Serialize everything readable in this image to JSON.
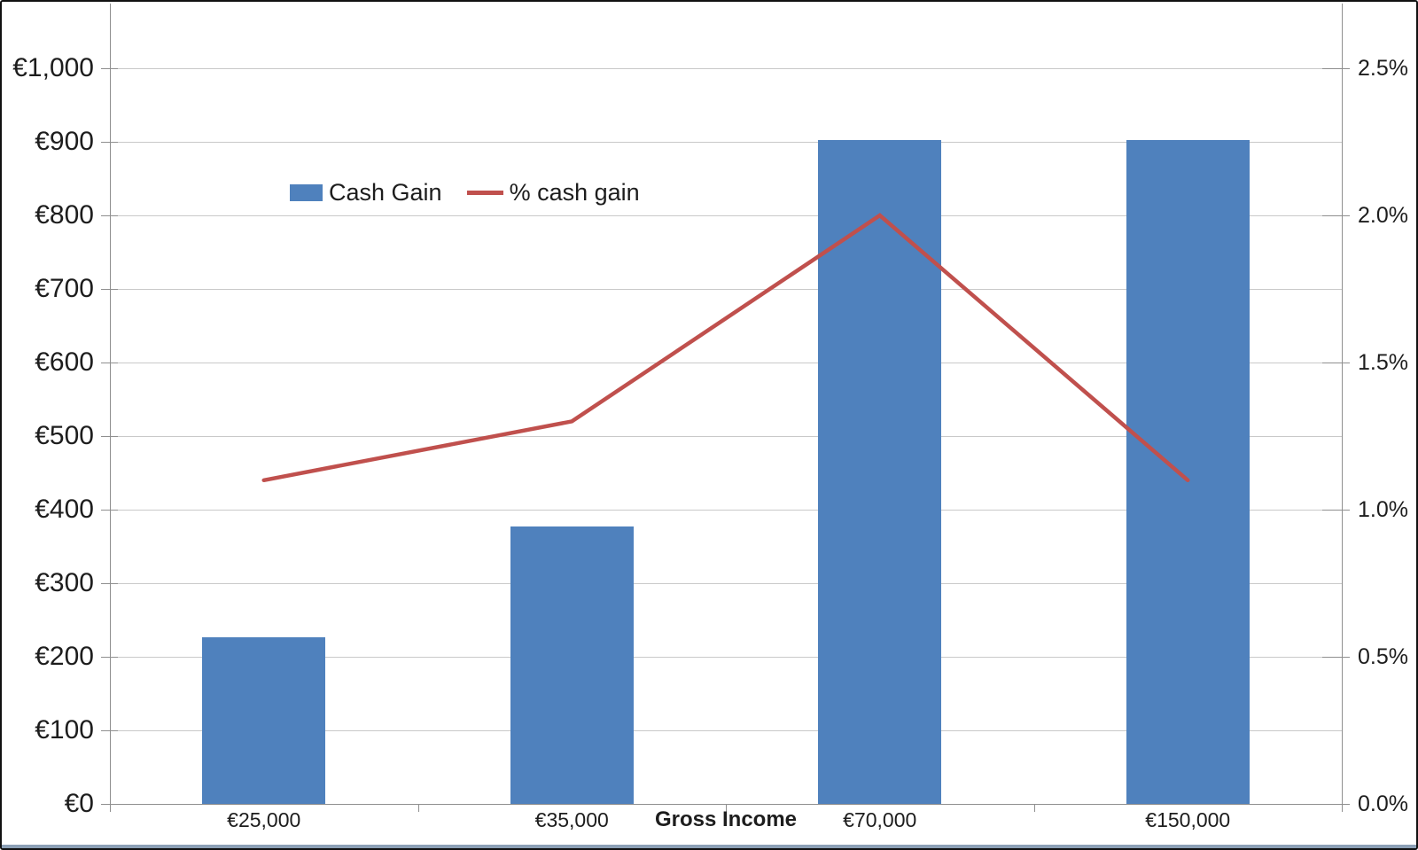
{
  "chart_data": {
    "type": "bar+line combo",
    "categories": [
      "€25,000",
      "€35,000",
      "€70,000",
      "€150,000"
    ],
    "series": [
      {
        "name": "Cash Gain",
        "type": "bar",
        "axis": "left",
        "values": [
          227,
          377,
          903,
          903
        ],
        "color": "#4f81bd"
      },
      {
        "name": "% cash gain",
        "type": "line",
        "axis": "right",
        "values": [
          1.1,
          1.3,
          2.0,
          1.1
        ],
        "color": "#c0504d"
      }
    ],
    "title": "",
    "xlabel": "Gross Income",
    "left_axis": {
      "min": 0,
      "max": 1000,
      "step": 100,
      "labels": [
        "€0",
        "€100",
        "€200",
        "€300",
        "€400",
        "€500",
        "€600",
        "€700",
        "€800",
        "€900",
        "€1,000"
      ]
    },
    "right_axis": {
      "min": 0,
      "max": 2.5,
      "step": 0.5,
      "labels": [
        "0.0%",
        "0.5%",
        "1.0%",
        "1.5%",
        "2.0%",
        "2.5%"
      ]
    },
    "legend": {
      "position": "inside-top-left",
      "items": [
        "Cash Gain",
        "% cash gain"
      ]
    },
    "grid": true
  },
  "colors": {
    "bar": "#4f81bd",
    "line": "#c0504d",
    "gridline": "#c9c9c9",
    "axis_line": "#8f8f8f"
  }
}
